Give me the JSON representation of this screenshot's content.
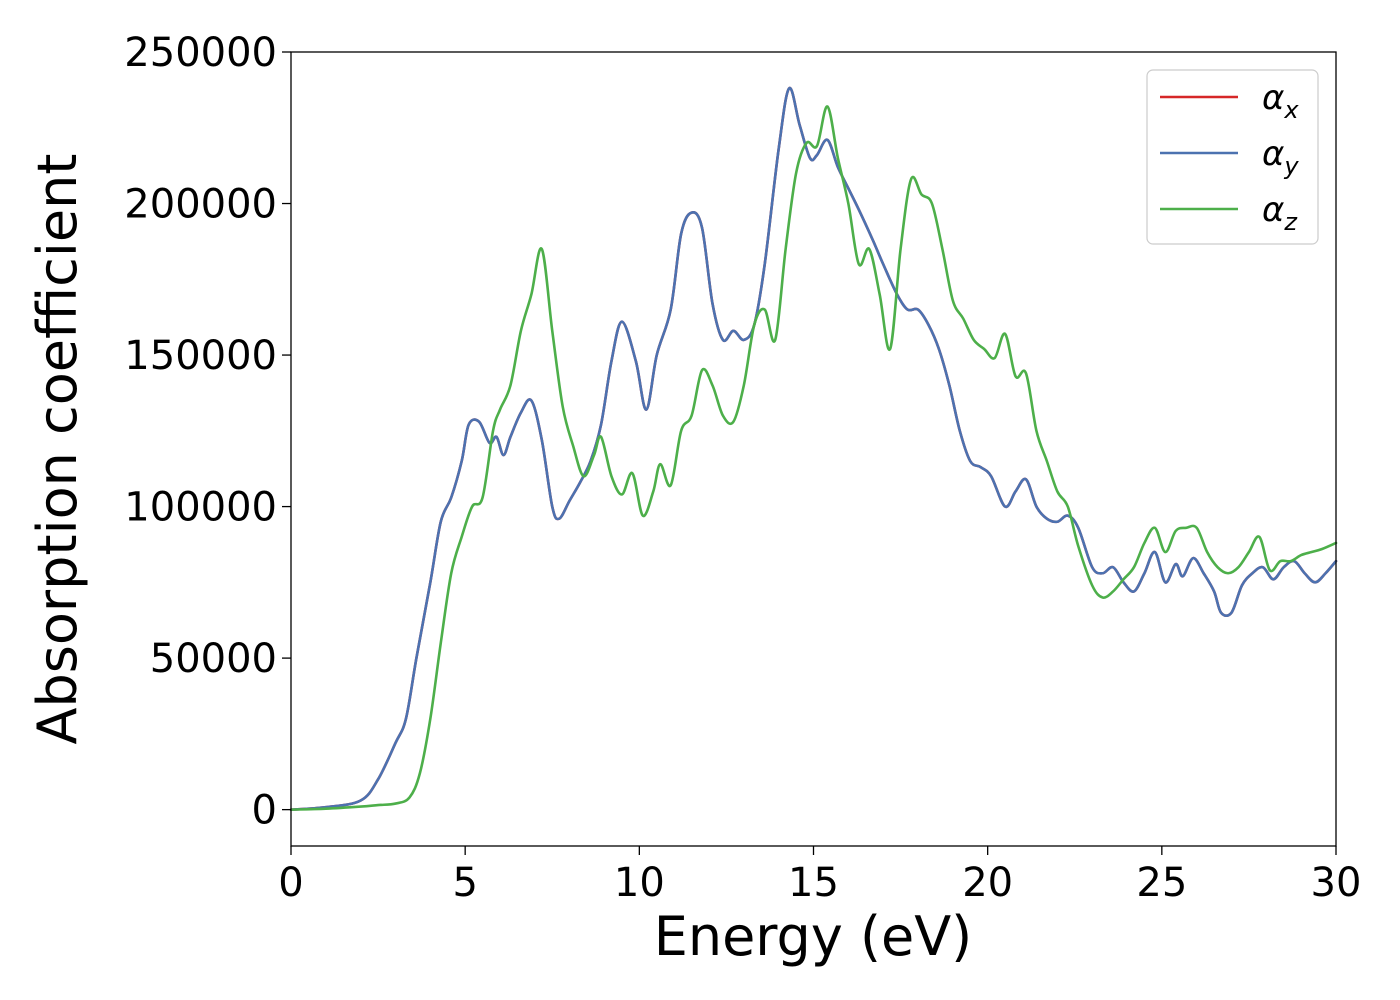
{
  "chart_data": {
    "type": "line",
    "xlabel": "Energy (eV)",
    "ylabel": "Absorption coefficient",
    "xlim": [
      0,
      30
    ],
    "ylim": [
      -12000,
      250000
    ],
    "xticks": [
      0,
      5,
      10,
      15,
      20,
      25,
      30
    ],
    "xtick_labels": [
      "0",
      "5",
      "10",
      "15",
      "20",
      "25",
      "30"
    ],
    "yticks": [
      0,
      50000,
      100000,
      150000,
      200000,
      250000
    ],
    "ytick_labels": [
      "0",
      "50000",
      "100000",
      "150000",
      "200000",
      "250000"
    ],
    "grid": false,
    "legend_position": "top-right",
    "series": [
      {
        "name": "α_x",
        "label_base": "α",
        "label_sub": "x",
        "color": "#d62728",
        "x": [
          0,
          1,
          2,
          2.5,
          3,
          3.3,
          3.6,
          4,
          4.3,
          4.6,
          4.9,
          5.1,
          5.4,
          5.7,
          5.9,
          6.1,
          6.3,
          6.6,
          6.9,
          7.2,
          7.5,
          7.7,
          8.0,
          8.3,
          8.6,
          8.9,
          9.2,
          9.5,
          9.9,
          10.2,
          10.5,
          10.9,
          11.2,
          11.5,
          11.8,
          12.1,
          12.4,
          12.7,
          13.0,
          13.3,
          13.6,
          14.0,
          14.3,
          14.6,
          14.9,
          15.1,
          15.4,
          15.7,
          16.0,
          16.3,
          16.7,
          17.0,
          17.4,
          17.7,
          18.0,
          18.3,
          18.6,
          18.9,
          19.2,
          19.5,
          19.8,
          20.1,
          20.5,
          20.8,
          21.1,
          21.4,
          21.7,
          22.0,
          22.3,
          22.6,
          23.0,
          23.3,
          23.6,
          23.9,
          24.2,
          24.5,
          24.8,
          25.1,
          25.4,
          25.6,
          25.9,
          26.2,
          26.5,
          26.7,
          27.0,
          27.3,
          27.6,
          27.9,
          28.2,
          28.5,
          28.8,
          29.1,
          29.4,
          29.7,
          30.0
        ],
        "y": [
          0,
          800,
          3000,
          10000,
          22000,
          30000,
          50000,
          75000,
          95000,
          103000,
          115000,
          127000,
          128000,
          121000,
          123000,
          117000,
          123000,
          131000,
          135000,
          122000,
          100000,
          96000,
          102000,
          108000,
          115000,
          127000,
          148000,
          161000,
          148000,
          132000,
          150000,
          165000,
          190000,
          197000,
          192000,
          167000,
          155000,
          158000,
          155000,
          160000,
          180000,
          218000,
          238000,
          226000,
          215000,
          216000,
          221000,
          212000,
          205000,
          198000,
          188000,
          180000,
          170000,
          165000,
          165000,
          160000,
          152000,
          140000,
          125000,
          115000,
          113000,
          110000,
          100000,
          105000,
          109000,
          100000,
          96000,
          95000,
          97000,
          93000,
          80000,
          78000,
          80000,
          75000,
          72000,
          78000,
          85000,
          75000,
          81000,
          77000,
          83000,
          78000,
          72000,
          65000,
          65000,
          74000,
          78000,
          80000,
          76000,
          80000,
          82000,
          78000,
          75000,
          78000,
          82000
        ]
      },
      {
        "name": "α_y",
        "label_base": "α",
        "label_sub": "y",
        "color": "#4c72b0",
        "x": [
          0,
          1,
          2,
          2.5,
          3,
          3.3,
          3.6,
          4,
          4.3,
          4.6,
          4.9,
          5.1,
          5.4,
          5.7,
          5.9,
          6.1,
          6.3,
          6.6,
          6.9,
          7.2,
          7.5,
          7.7,
          8.0,
          8.3,
          8.6,
          8.9,
          9.2,
          9.5,
          9.9,
          10.2,
          10.5,
          10.9,
          11.2,
          11.5,
          11.8,
          12.1,
          12.4,
          12.7,
          13.0,
          13.3,
          13.6,
          14.0,
          14.3,
          14.6,
          14.9,
          15.1,
          15.4,
          15.7,
          16.0,
          16.3,
          16.7,
          17.0,
          17.4,
          17.7,
          18.0,
          18.3,
          18.6,
          18.9,
          19.2,
          19.5,
          19.8,
          20.1,
          20.5,
          20.8,
          21.1,
          21.4,
          21.7,
          22.0,
          22.3,
          22.6,
          23.0,
          23.3,
          23.6,
          23.9,
          24.2,
          24.5,
          24.8,
          25.1,
          25.4,
          25.6,
          25.9,
          26.2,
          26.5,
          26.7,
          27.0,
          27.3,
          27.6,
          27.9,
          28.2,
          28.5,
          28.8,
          29.1,
          29.4,
          29.7,
          30.0
        ],
        "y": [
          0,
          800,
          3000,
          10000,
          22000,
          30000,
          50000,
          75000,
          95000,
          103000,
          115000,
          127000,
          128000,
          121000,
          123000,
          117000,
          123000,
          131000,
          135000,
          122000,
          100000,
          96000,
          102000,
          108000,
          115000,
          127000,
          148000,
          161000,
          148000,
          132000,
          150000,
          165000,
          190000,
          197000,
          192000,
          167000,
          155000,
          158000,
          155000,
          160000,
          180000,
          218000,
          238000,
          226000,
          215000,
          216000,
          221000,
          212000,
          205000,
          198000,
          188000,
          180000,
          170000,
          165000,
          165000,
          160000,
          152000,
          140000,
          125000,
          115000,
          113000,
          110000,
          100000,
          105000,
          109000,
          100000,
          96000,
          95000,
          97000,
          93000,
          80000,
          78000,
          80000,
          75000,
          72000,
          78000,
          85000,
          75000,
          81000,
          77000,
          83000,
          78000,
          72000,
          65000,
          65000,
          74000,
          78000,
          80000,
          76000,
          80000,
          82000,
          78000,
          75000,
          78000,
          82000
        ]
      },
      {
        "name": "α_z",
        "label_base": "α",
        "label_sub": "z",
        "color": "#4daf4a",
        "x": [
          0,
          1,
          2,
          2.5,
          3,
          3.4,
          3.7,
          4,
          4.3,
          4.6,
          4.9,
          5.2,
          5.5,
          5.8,
          6.0,
          6.3,
          6.6,
          6.9,
          7.2,
          7.5,
          7.8,
          8.1,
          8.4,
          8.7,
          8.9,
          9.2,
          9.5,
          9.8,
          10.1,
          10.4,
          10.6,
          10.9,
          11.2,
          11.5,
          11.8,
          12.1,
          12.4,
          12.7,
          13.0,
          13.3,
          13.6,
          13.9,
          14.2,
          14.5,
          14.8,
          15.1,
          15.4,
          15.7,
          16.0,
          16.3,
          16.6,
          16.9,
          17.2,
          17.5,
          17.8,
          18.1,
          18.4,
          18.7,
          19.0,
          19.3,
          19.6,
          19.9,
          20.2,
          20.5,
          20.8,
          21.1,
          21.4,
          21.7,
          22.0,
          22.3,
          22.6,
          23.0,
          23.3,
          23.6,
          23.9,
          24.2,
          24.5,
          24.8,
          25.1,
          25.4,
          25.7,
          26.0,
          26.3,
          26.6,
          26.9,
          27.2,
          27.5,
          27.8,
          28.1,
          28.4,
          28.7,
          29.0,
          29.3,
          29.6,
          30.0
        ],
        "y": [
          0,
          300,
          1000,
          1500,
          2000,
          4000,
          12000,
          30000,
          55000,
          78000,
          90000,
          100000,
          103000,
          125000,
          132000,
          140000,
          158000,
          170000,
          185000,
          158000,
          133000,
          120000,
          110000,
          117000,
          123000,
          110000,
          104000,
          111000,
          97000,
          105000,
          114000,
          107000,
          125000,
          130000,
          145000,
          140000,
          130000,
          128000,
          140000,
          160000,
          165000,
          155000,
          185000,
          210000,
          220000,
          219000,
          232000,
          215000,
          200000,
          180000,
          185000,
          170000,
          152000,
          185000,
          208000,
          203000,
          200000,
          185000,
          168000,
          162000,
          155000,
          152000,
          149000,
          157000,
          143000,
          144000,
          125000,
          115000,
          105000,
          100000,
          87000,
          74000,
          70000,
          72000,
          76000,
          80000,
          88000,
          93000,
          85000,
          92000,
          93000,
          93000,
          85000,
          80000,
          78000,
          80000,
          85000,
          90000,
          79000,
          82000,
          82000,
          84000,
          85000,
          86000,
          88000
        ]
      }
    ]
  }
}
